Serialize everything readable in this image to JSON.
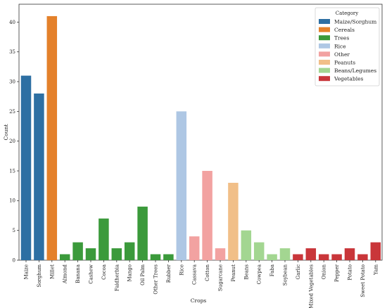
{
  "chart_data": {
    "type": "bar",
    "xlabel": "Crops",
    "ylabel": "Count",
    "ylim": [
      0,
      43
    ],
    "yticks": [
      0,
      5,
      10,
      15,
      20,
      25,
      30,
      35,
      40
    ],
    "grid": false,
    "legend": {
      "title": "Category",
      "placement": "top-right",
      "entries": [
        {
          "label": "Maize/Sorghum",
          "color": "#2d6fa3"
        },
        {
          "label": "Cereals",
          "color": "#e4812b"
        },
        {
          "label": "Trees",
          "color": "#3b9a3b"
        },
        {
          "label": "Rice",
          "color": "#aec7e4"
        },
        {
          "label": "Other",
          "color": "#f2a2a1"
        },
        {
          "label": "Peanuts",
          "color": "#f1bf88"
        },
        {
          "label": "Beans/Legumes",
          "color": "#a3d691"
        },
        {
          "label": "Vegetables",
          "color": "#c9363a"
        }
      ]
    },
    "categories": [
      "Maize",
      "Sorghum",
      "Millet",
      "Almond",
      "Banana",
      "Cashew",
      "Cocoa",
      "Faidherbia",
      "Mango",
      "Oil Palm",
      "Other Trees",
      "Rubber",
      "Rice",
      "Cassava",
      "Cotton",
      "Sugarcane",
      "Peanut",
      "Beans",
      "Cowpea",
      "Faba",
      "Soybean",
      "Garlic",
      "Mixed Vegetables",
      "Onion",
      "Pepper",
      "Potato",
      "Sweet Potato",
      "Yam"
    ],
    "values": [
      31,
      28,
      41,
      1,
      3,
      2,
      7,
      2,
      3,
      9,
      1,
      1,
      25,
      4,
      15,
      2,
      13,
      5,
      3,
      1,
      2,
      1,
      2,
      1,
      1,
      2,
      1,
      3
    ],
    "bar_category": [
      "Maize/Sorghum",
      "Maize/Sorghum",
      "Cereals",
      "Trees",
      "Trees",
      "Trees",
      "Trees",
      "Trees",
      "Trees",
      "Trees",
      "Trees",
      "Trees",
      "Rice",
      "Other",
      "Other",
      "Other",
      "Peanuts",
      "Beans/Legumes",
      "Beans/Legumes",
      "Beans/Legumes",
      "Beans/Legumes",
      "Vegetables",
      "Vegetables",
      "Vegetables",
      "Vegetables",
      "Vegetables",
      "Vegetables",
      "Vegetables"
    ]
  }
}
